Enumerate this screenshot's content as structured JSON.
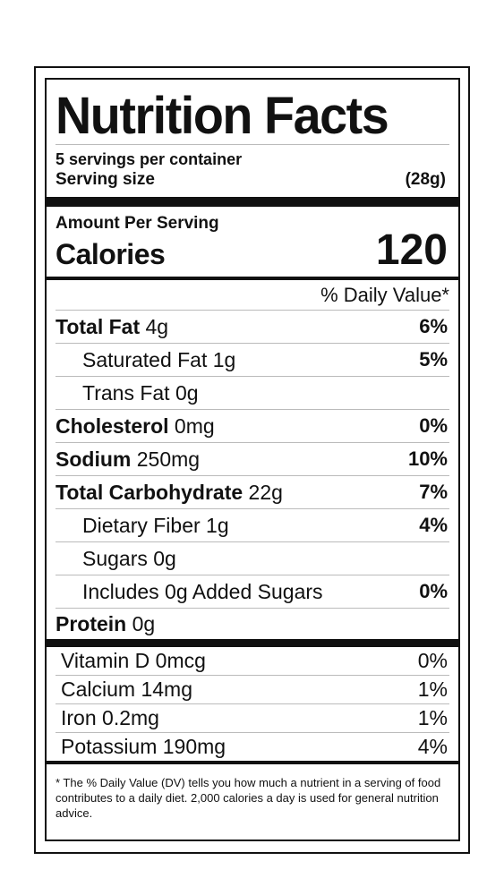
{
  "label": {
    "title": "Nutrition Facts",
    "servings_per_container": "5 servings per container",
    "serving_size_label": "Serving size",
    "serving_size_value": "(28g)",
    "amount_per_serving": "Amount Per Serving",
    "calories_label": "Calories",
    "calories_value": "120",
    "daily_value_header": "% Daily Value*",
    "nutrients": [
      {
        "name": "Total Fat",
        "amount": "4g",
        "dv": "6%"
      },
      {
        "name": "Saturated Fat",
        "amount": "1g",
        "dv": "5%"
      },
      {
        "name": "Trans Fat",
        "amount": "0g",
        "dv": ""
      },
      {
        "name": "Cholesterol",
        "amount": "0mg",
        "dv": "0%"
      },
      {
        "name": "Sodium",
        "amount": "250mg",
        "dv": "10%"
      },
      {
        "name": "Total Carbohydrate",
        "amount": "22g",
        "dv": "7%"
      },
      {
        "name": "Dietary Fiber",
        "amount": "1g",
        "dv": "4%"
      },
      {
        "name": "Sugars",
        "amount": "0g",
        "dv": ""
      },
      {
        "name": "Includes 0g Added Sugars",
        "amount": "",
        "dv": "0%"
      },
      {
        "name": "Protein",
        "amount": "0g",
        "dv": ""
      }
    ],
    "vitamins": [
      {
        "text": "Vitamin D 0mcg",
        "dv": "0%"
      },
      {
        "text": "Calcium 14mg",
        "dv": "1%"
      },
      {
        "text": "Iron 0.2mg",
        "dv": "1%"
      },
      {
        "text": "Potassium 190mg",
        "dv": "4%"
      }
    ],
    "footnote": "* The % Daily Value (DV) tells you how much a nutrient in a serving of food contributes to a daily diet. 2,000 calories a day is used for general nutrition advice."
  }
}
